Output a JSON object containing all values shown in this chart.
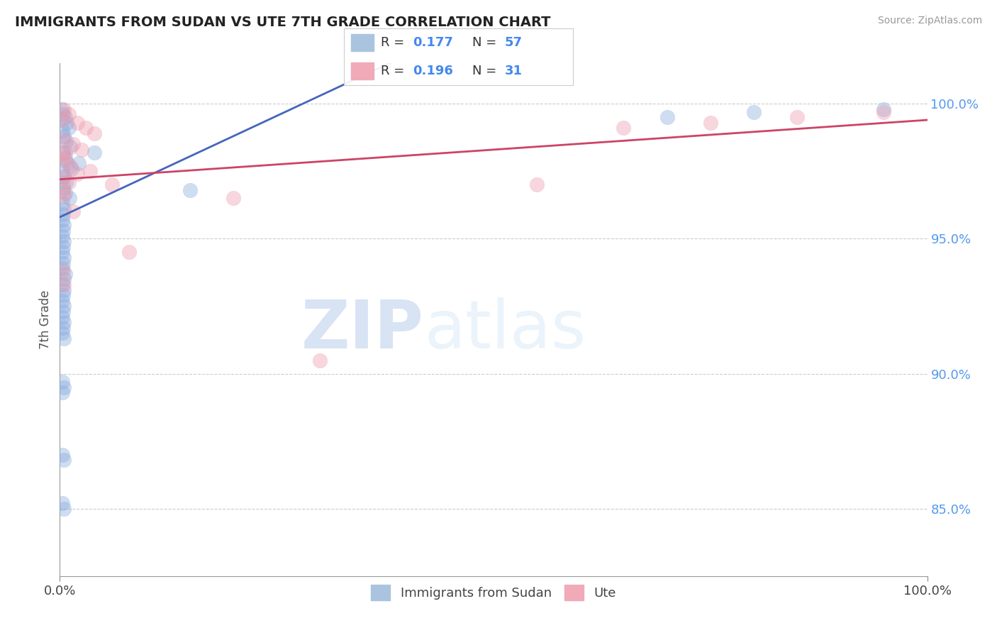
{
  "title": "IMMIGRANTS FROM SUDAN VS UTE 7TH GRADE CORRELATION CHART",
  "source_text": "Source: ZipAtlas.com",
  "ylabel": "7th Grade",
  "x_min": 0.0,
  "x_max": 100.0,
  "y_min": 82.5,
  "y_max": 101.5,
  "y_ticks": [
    85.0,
    90.0,
    95.0,
    100.0
  ],
  "y_tick_labels": [
    "85.0%",
    "90.0%",
    "95.0%",
    "100.0%"
  ],
  "x_tick_labels": [
    "0.0%",
    "100.0%"
  ],
  "legend_bottom_labels": [
    "Immigrants from Sudan",
    "Ute"
  ],
  "blue_scatter": [
    [
      0.2,
      99.8
    ],
    [
      0.4,
      99.6
    ],
    [
      0.6,
      99.5
    ],
    [
      0.8,
      99.3
    ],
    [
      1.0,
      99.1
    ],
    [
      0.3,
      99.0
    ],
    [
      0.5,
      98.8
    ],
    [
      0.7,
      98.6
    ],
    [
      1.2,
      98.4
    ],
    [
      0.4,
      98.2
    ],
    [
      0.6,
      98.0
    ],
    [
      0.9,
      97.8
    ],
    [
      1.4,
      97.6
    ],
    [
      0.3,
      97.5
    ],
    [
      0.5,
      97.3
    ],
    [
      0.7,
      97.1
    ],
    [
      0.4,
      96.9
    ],
    [
      0.6,
      96.7
    ],
    [
      1.1,
      96.5
    ],
    [
      0.3,
      96.3
    ],
    [
      0.5,
      96.1
    ],
    [
      0.4,
      95.9
    ],
    [
      2.2,
      97.8
    ],
    [
      4.0,
      98.2
    ],
    [
      0.3,
      95.7
    ],
    [
      0.5,
      95.5
    ],
    [
      0.4,
      95.3
    ],
    [
      0.3,
      95.1
    ],
    [
      0.5,
      94.9
    ],
    [
      0.4,
      94.7
    ],
    [
      0.3,
      94.5
    ],
    [
      0.5,
      94.3
    ],
    [
      0.4,
      94.1
    ],
    [
      0.3,
      93.9
    ],
    [
      0.6,
      93.7
    ],
    [
      0.5,
      93.5
    ],
    [
      0.3,
      93.3
    ],
    [
      0.5,
      93.1
    ],
    [
      0.4,
      92.9
    ],
    [
      0.3,
      92.7
    ],
    [
      0.5,
      92.5
    ],
    [
      0.4,
      92.3
    ],
    [
      0.3,
      92.1
    ],
    [
      0.5,
      91.9
    ],
    [
      0.4,
      91.7
    ],
    [
      0.3,
      91.5
    ],
    [
      0.5,
      91.3
    ],
    [
      15.0,
      96.8
    ],
    [
      0.3,
      89.7
    ],
    [
      0.5,
      89.5
    ],
    [
      0.3,
      89.3
    ],
    [
      0.3,
      87.0
    ],
    [
      0.5,
      86.8
    ],
    [
      0.3,
      85.2
    ],
    [
      0.5,
      85.0
    ],
    [
      70.0,
      99.5
    ],
    [
      80.0,
      99.7
    ],
    [
      95.0,
      99.8
    ]
  ],
  "pink_scatter": [
    [
      0.5,
      99.8
    ],
    [
      1.0,
      99.6
    ],
    [
      2.0,
      99.3
    ],
    [
      3.0,
      99.1
    ],
    [
      4.0,
      98.9
    ],
    [
      0.4,
      98.7
    ],
    [
      1.5,
      98.5
    ],
    [
      2.5,
      98.3
    ],
    [
      0.3,
      98.1
    ],
    [
      0.6,
      97.9
    ],
    [
      1.2,
      97.7
    ],
    [
      3.5,
      97.5
    ],
    [
      0.5,
      97.3
    ],
    [
      1.0,
      97.1
    ],
    [
      6.0,
      97.0
    ],
    [
      0.4,
      96.8
    ],
    [
      20.0,
      96.5
    ],
    [
      0.5,
      93.3
    ],
    [
      30.0,
      90.5
    ],
    [
      65.0,
      99.1
    ],
    [
      75.0,
      99.3
    ],
    [
      85.0,
      99.5
    ],
    [
      95.0,
      99.7
    ],
    [
      0.3,
      99.4
    ],
    [
      0.6,
      98.2
    ],
    [
      2.0,
      97.4
    ],
    [
      0.5,
      96.6
    ],
    [
      1.5,
      96.0
    ],
    [
      8.0,
      94.5
    ],
    [
      0.4,
      93.8
    ],
    [
      55.0,
      97.0
    ]
  ],
  "blue_line": [
    0.0,
    95.8,
    30.0,
    100.3
  ],
  "pink_line": [
    0.0,
    97.2,
    100.0,
    99.4
  ],
  "blue_line_color": "#4466bb",
  "pink_line_color": "#cc4466",
  "blue_scatter_color": "#88aadd",
  "pink_scatter_color": "#ee99aa",
  "bg_color": "#ffffff",
  "grid_color": "#cccccc",
  "watermark_zip": "ZIP",
  "watermark_atlas": "atlas"
}
